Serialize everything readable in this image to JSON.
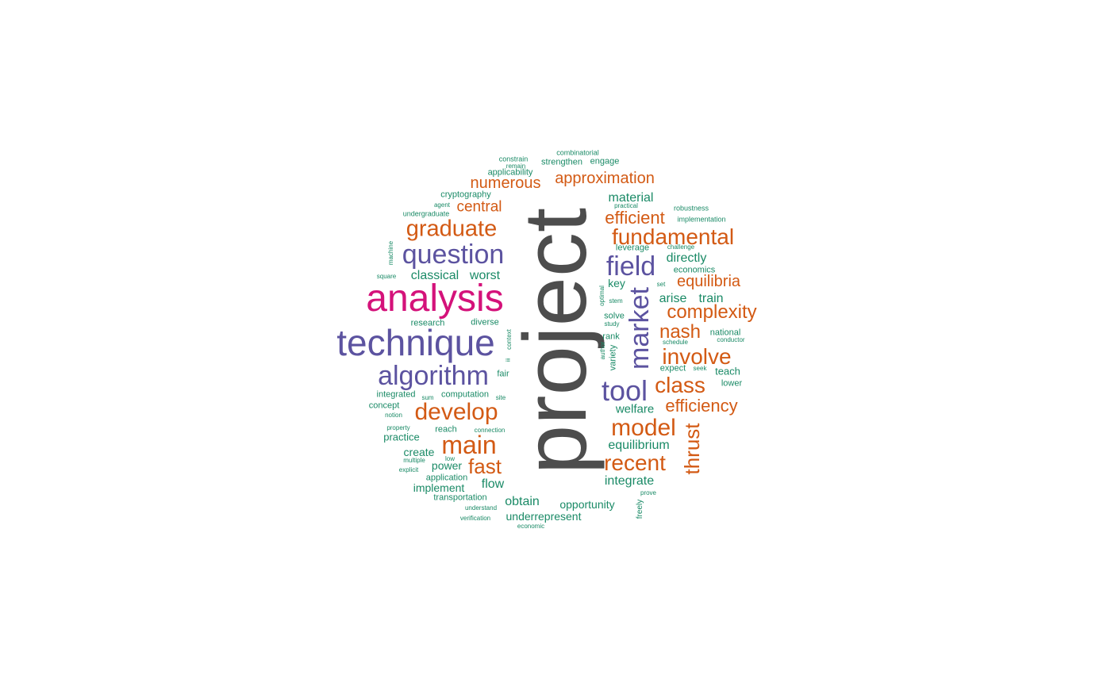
{
  "palette": {
    "dark": "#4d4d4d",
    "magenta": "#d4127a",
    "purple": "#5c53a0",
    "orange": "#d35a14",
    "green": "#1a8a66"
  },
  "words": [
    {
      "text": "project",
      "weight": 100,
      "color": "dark"
    },
    {
      "text": "analysis",
      "weight": 48,
      "color": "magenta"
    },
    {
      "text": "technique",
      "weight": 48,
      "color": "purple"
    },
    {
      "text": "algorithm",
      "weight": 36,
      "color": "purple"
    },
    {
      "text": "question",
      "weight": 36,
      "color": "purple"
    },
    {
      "text": "market",
      "weight": 36,
      "color": "purple"
    },
    {
      "text": "tool",
      "weight": 36,
      "color": "purple"
    },
    {
      "text": "field",
      "weight": 36,
      "color": "purple"
    },
    {
      "text": "develop",
      "weight": 32,
      "color": "orange"
    },
    {
      "text": "main",
      "weight": 32,
      "color": "orange"
    },
    {
      "text": "model",
      "weight": 32,
      "color": "orange"
    },
    {
      "text": "graduate",
      "weight": 29,
      "color": "orange"
    },
    {
      "text": "fundamental",
      "weight": 29,
      "color": "orange"
    },
    {
      "text": "recent",
      "weight": 29,
      "color": "orange"
    },
    {
      "text": "class",
      "weight": 29,
      "color": "orange"
    },
    {
      "text": "involve",
      "weight": 29,
      "color": "orange"
    },
    {
      "text": "fast",
      "weight": 26,
      "color": "orange"
    },
    {
      "text": "thrust",
      "weight": 26,
      "color": "orange"
    },
    {
      "text": "nash",
      "weight": 26,
      "color": "orange"
    },
    {
      "text": "complexity",
      "weight": 26,
      "color": "orange"
    },
    {
      "text": "efficiency",
      "weight": 23,
      "color": "orange"
    },
    {
      "text": "efficient",
      "weight": 23,
      "color": "orange"
    },
    {
      "text": "equilibria",
      "weight": 23,
      "color": "orange"
    },
    {
      "text": "approximation",
      "weight": 22,
      "color": "orange"
    },
    {
      "text": "numerous",
      "weight": 21,
      "color": "orange"
    },
    {
      "text": "central",
      "weight": 20,
      "color": "orange"
    },
    {
      "text": "material",
      "weight": 17,
      "color": "green"
    },
    {
      "text": "directly",
      "weight": 16,
      "color": "green"
    },
    {
      "text": "classical",
      "weight": 17,
      "color": "green"
    },
    {
      "text": "worst",
      "weight": 17,
      "color": "green"
    },
    {
      "text": "arise",
      "weight": 16,
      "color": "green"
    },
    {
      "text": "train",
      "weight": 16,
      "color": "green"
    },
    {
      "text": "equilibrium",
      "weight": 17,
      "color": "green"
    },
    {
      "text": "welfare",
      "weight": 16,
      "color": "green"
    },
    {
      "text": "integrate",
      "weight": 16,
      "color": "green"
    },
    {
      "text": "obtain",
      "weight": 16,
      "color": "green"
    },
    {
      "text": "opportunity",
      "weight": 14,
      "color": "green"
    },
    {
      "text": "underrepresent",
      "weight": 15,
      "color": "green"
    },
    {
      "text": "flow",
      "weight": 16,
      "color": "green"
    },
    {
      "text": "create",
      "weight": 15,
      "color": "green"
    },
    {
      "text": "practice",
      "weight": 14,
      "color": "green"
    },
    {
      "text": "power",
      "weight": 14,
      "color": "green"
    },
    {
      "text": "implement",
      "weight": 14,
      "color": "green"
    },
    {
      "text": "key",
      "weight": 14,
      "color": "green"
    },
    {
      "text": "teach",
      "weight": 14,
      "color": "green"
    },
    {
      "text": "application",
      "weight": 12,
      "color": "green"
    },
    {
      "text": "transportation",
      "weight": 12,
      "color": "green"
    },
    {
      "text": "cryptography",
      "weight": 12,
      "color": "green"
    },
    {
      "text": "strengthen",
      "weight": 12,
      "color": "green"
    },
    {
      "text": "engage",
      "weight": 12,
      "color": "green"
    },
    {
      "text": "applicability",
      "weight": 12,
      "color": "green"
    },
    {
      "text": "research",
      "weight": 12,
      "color": "green"
    },
    {
      "text": "diverse",
      "weight": 12,
      "color": "green"
    },
    {
      "text": "fair",
      "weight": 12,
      "color": "green"
    },
    {
      "text": "integrated",
      "weight": 12,
      "color": "green"
    },
    {
      "text": "computation",
      "weight": 12,
      "color": "green"
    },
    {
      "text": "concept",
      "weight": 12,
      "color": "green"
    },
    {
      "text": "reach",
      "weight": 12,
      "color": "green"
    },
    {
      "text": "leverage",
      "weight": 12,
      "color": "green"
    },
    {
      "text": "economics",
      "weight": 12,
      "color": "green"
    },
    {
      "text": "solve",
      "weight": 12,
      "color": "green"
    },
    {
      "text": "national",
      "weight": 12,
      "color": "green"
    },
    {
      "text": "expect",
      "weight": 12,
      "color": "green"
    },
    {
      "text": "lower",
      "weight": 12,
      "color": "green"
    },
    {
      "text": "rank",
      "weight": 12,
      "color": "green"
    },
    {
      "text": "variety",
      "weight": 12,
      "color": "green"
    },
    {
      "text": "freely",
      "weight": 11,
      "color": "green"
    },
    {
      "text": "combinatorial",
      "weight": 10,
      "color": "green"
    },
    {
      "text": "constrain",
      "weight": 10,
      "color": "green"
    },
    {
      "text": "remain",
      "weight": 9,
      "color": "green"
    },
    {
      "text": "agent",
      "weight": 9,
      "color": "green"
    },
    {
      "text": "undergraduate",
      "weight": 10,
      "color": "green"
    },
    {
      "text": "machine",
      "weight": 9,
      "color": "green"
    },
    {
      "text": "square",
      "weight": 9,
      "color": "green"
    },
    {
      "text": "practical",
      "weight": 9,
      "color": "green"
    },
    {
      "text": "robustness",
      "weight": 10,
      "color": "green"
    },
    {
      "text": "implementation",
      "weight": 10,
      "color": "green"
    },
    {
      "text": "challenge",
      "weight": 9,
      "color": "green"
    },
    {
      "text": "set",
      "weight": 9,
      "color": "green"
    },
    {
      "text": "stem",
      "weight": 9,
      "color": "green"
    },
    {
      "text": "optimal",
      "weight": 9,
      "color": "green"
    },
    {
      "text": "study",
      "weight": 9,
      "color": "green"
    },
    {
      "text": "schedule",
      "weight": 9,
      "color": "green"
    },
    {
      "text": "conductor",
      "weight": 9,
      "color": "green"
    },
    {
      "text": "seek",
      "weight": 9,
      "color": "green"
    },
    {
      "text": "author",
      "weight": 9,
      "color": "green"
    },
    {
      "text": "context",
      "weight": 9,
      "color": "green"
    },
    {
      "text": "iii",
      "weight": 8,
      "color": "green"
    },
    {
      "text": "sum",
      "weight": 9,
      "color": "green"
    },
    {
      "text": "site",
      "weight": 9,
      "color": "green"
    },
    {
      "text": "notion",
      "weight": 9,
      "color": "green"
    },
    {
      "text": "property",
      "weight": 9,
      "color": "green"
    },
    {
      "text": "connection",
      "weight": 9,
      "color": "green"
    },
    {
      "text": "multiple",
      "weight": 9,
      "color": "green"
    },
    {
      "text": "low",
      "weight": 9,
      "color": "green"
    },
    {
      "text": "explicit",
      "weight": 9,
      "color": "green"
    },
    {
      "text": "understand",
      "weight": 9,
      "color": "green"
    },
    {
      "text": "verification",
      "weight": 9,
      "color": "green"
    },
    {
      "text": "economic",
      "weight": 9,
      "color": "green"
    },
    {
      "text": "prove",
      "weight": 9,
      "color": "green"
    }
  ]
}
